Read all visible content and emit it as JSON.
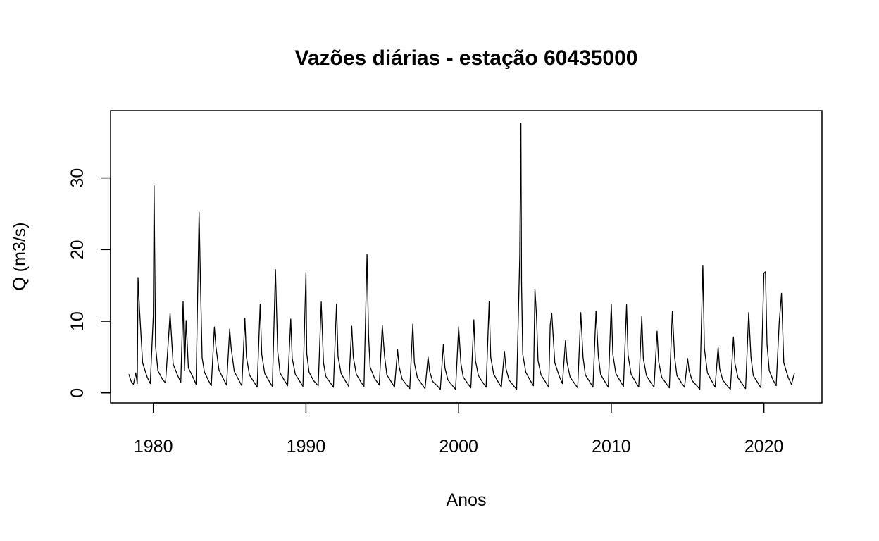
{
  "chart_data": {
    "type": "line",
    "title": "Vazões diárias - estação 60435000",
    "xlabel": "Anos",
    "ylabel": "Q (m3/s)",
    "xlim": [
      1977.2,
      2023.8
    ],
    "ylim": [
      -1.4,
      39.4
    ],
    "x_ticks": [
      1980,
      1990,
      2000,
      2010,
      2020
    ],
    "y_ticks": [
      0,
      10,
      20,
      30
    ],
    "grid": false,
    "legend": "none",
    "line_color": "#000000",
    "series_note_x_units": "years (decimal)",
    "x": [
      1978.4,
      1978.55,
      1978.7,
      1978.85,
      1978.95,
      1979.0,
      1979.1,
      1979.3,
      1979.6,
      1979.8,
      1980.0,
      1980.05,
      1980.15,
      1980.3,
      1980.6,
      1980.8,
      1981.0,
      1981.1,
      1981.3,
      1981.6,
      1981.8,
      1981.95,
      1982.05,
      1982.15,
      1982.3,
      1982.6,
      1982.8,
      1983.0,
      1983.1,
      1983.2,
      1983.35,
      1983.6,
      1983.8,
      1984.0,
      1984.1,
      1984.3,
      1984.6,
      1984.8,
      1985.0,
      1985.1,
      1985.3,
      1985.6,
      1985.8,
      1986.0,
      1986.1,
      1986.3,
      1986.6,
      1986.8,
      1987.0,
      1987.1,
      1987.3,
      1987.6,
      1987.8,
      1988.0,
      1988.15,
      1988.3,
      1988.6,
      1988.8,
      1989.0,
      1989.1,
      1989.3,
      1989.6,
      1989.8,
      1990.0,
      1990.05,
      1990.2,
      1990.5,
      1990.8,
      1991.0,
      1991.15,
      1991.3,
      1991.6,
      1991.8,
      1992.0,
      1992.1,
      1992.3,
      1992.6,
      1992.8,
      1993.0,
      1993.1,
      1993.3,
      1993.6,
      1993.8,
      1994.0,
      1994.1,
      1994.2,
      1994.5,
      1994.8,
      1995.0,
      1995.15,
      1995.3,
      1995.6,
      1995.8,
      1996.0,
      1996.1,
      1996.3,
      1996.6,
      1996.8,
      1997.0,
      1997.1,
      1997.3,
      1997.6,
      1997.8,
      1998.0,
      1998.1,
      1998.3,
      1998.6,
      1998.8,
      1999.0,
      1999.1,
      1999.3,
      1999.6,
      1999.8,
      2000.0,
      2000.15,
      2000.3,
      2000.6,
      2000.8,
      2001.0,
      2001.1,
      2001.3,
      2001.6,
      2001.8,
      2002.0,
      2002.1,
      2002.3,
      2002.6,
      2002.8,
      2003.0,
      2003.1,
      2003.3,
      2003.6,
      2003.8,
      2004.0,
      2004.08,
      2004.12,
      2004.2,
      2004.4,
      2004.7,
      2004.9,
      2005.0,
      2005.1,
      2005.2,
      2005.4,
      2005.7,
      2005.9,
      2006.0,
      2006.1,
      2006.3,
      2006.6,
      2006.8,
      2007.0,
      2007.1,
      2007.3,
      2007.6,
      2007.8,
      2008.0,
      2008.15,
      2008.3,
      2008.6,
      2008.8,
      2009.0,
      2009.15,
      2009.3,
      2009.6,
      2009.8,
      2010.0,
      2010.1,
      2010.3,
      2010.6,
      2010.8,
      2011.0,
      2011.1,
      2011.3,
      2011.6,
      2011.8,
      2012.0,
      2012.1,
      2012.3,
      2012.6,
      2012.8,
      2013.0,
      2013.1,
      2013.3,
      2013.6,
      2013.8,
      2014.0,
      2014.15,
      2014.3,
      2014.6,
      2014.8,
      2015.0,
      2015.1,
      2015.3,
      2015.6,
      2015.8,
      2016.0,
      2016.1,
      2016.3,
      2016.6,
      2016.8,
      2017.0,
      2017.1,
      2017.3,
      2017.6,
      2017.8,
      2018.0,
      2018.1,
      2018.3,
      2018.6,
      2018.8,
      2019.0,
      2019.15,
      2019.3,
      2019.6,
      2019.8,
      2020.0,
      2020.1,
      2020.2,
      2020.35,
      2020.6,
      2020.8,
      2021.0,
      2021.15,
      2021.3,
      2021.6,
      2021.8,
      2022.0
    ],
    "values": [
      2.6,
      1.6,
      1.2,
      2.8,
      1.3,
      16.1,
      11.5,
      4.2,
      2.2,
      1.3,
      10.8,
      28.9,
      6.5,
      3.1,
      1.9,
      1.4,
      7.8,
      11.1,
      4.0,
      2.4,
      1.5,
      12.8,
      3.1,
      10.1,
      3.5,
      2.2,
      1.2,
      25.2,
      14.2,
      4.9,
      2.9,
      1.8,
      1.0,
      9.2,
      6.5,
      3.2,
      1.9,
      1.1,
      8.9,
      6.3,
      3.0,
      1.8,
      1.0,
      10.4,
      5.0,
      2.5,
      1.5,
      0.8,
      12.4,
      5.4,
      2.7,
      1.6,
      0.9,
      17.2,
      5.8,
      2.8,
      1.7,
      1.0,
      10.3,
      4.8,
      2.6,
      1.6,
      0.9,
      16.8,
      5.5,
      2.9,
      1.7,
      1.0,
      12.7,
      4.2,
      2.3,
      1.4,
      0.8,
      12.4,
      5.1,
      2.7,
      1.6,
      0.9,
      9.3,
      5.0,
      2.6,
      1.5,
      0.9,
      19.3,
      8.0,
      3.6,
      2.0,
      1.1,
      9.4,
      5.1,
      2.5,
      1.5,
      0.8,
      6.0,
      3.7,
      1.9,
      1.1,
      0.6,
      9.6,
      4.2,
      2.1,
      1.2,
      0.6,
      5.0,
      3.0,
      1.6,
      1.0,
      0.5,
      6.8,
      3.5,
      1.8,
      1.0,
      0.5,
      9.2,
      4.1,
      2.2,
      1.3,
      0.7,
      10.2,
      4.5,
      2.4,
      1.4,
      0.8,
      12.7,
      5.0,
      2.6,
      1.5,
      0.8,
      5.8,
      3.4,
      1.8,
      1.0,
      0.5,
      18.9,
      37.6,
      15.3,
      5.4,
      2.9,
      1.7,
      1.0,
      14.5,
      10.8,
      4.5,
      2.5,
      1.5,
      0.8,
      9.5,
      11.1,
      4.2,
      2.3,
      1.3,
      7.3,
      4.3,
      2.2,
      1.3,
      0.7,
      11.2,
      5.0,
      2.5,
      1.5,
      0.8,
      11.4,
      5.2,
      2.6,
      1.5,
      0.8,
      12.4,
      5.4,
      2.7,
      1.6,
      0.9,
      12.3,
      5.3,
      2.6,
      1.5,
      0.8,
      10.7,
      4.8,
      2.4,
      1.4,
      0.8,
      8.6,
      4.4,
      2.2,
      1.3,
      0.7,
      11.4,
      5.0,
      2.4,
      1.4,
      0.8,
      4.8,
      3.1,
      1.7,
      1.0,
      0.5,
      17.8,
      6.2,
      2.8,
      1.6,
      0.8,
      6.4,
      3.4,
      1.8,
      1.0,
      0.5,
      7.8,
      4.1,
      2.1,
      1.2,
      0.6,
      11.2,
      5.0,
      2.4,
      1.4,
      0.7,
      16.7,
      16.9,
      6.8,
      3.1,
      1.8,
      1.0,
      9.8,
      13.9,
      4.2,
      2.1,
      1.2,
      2.8
    ]
  }
}
